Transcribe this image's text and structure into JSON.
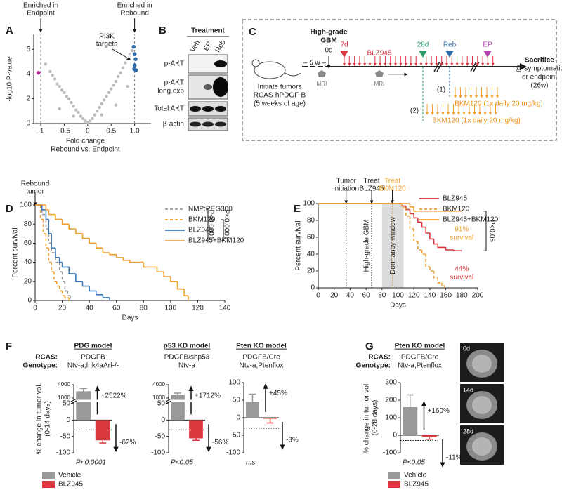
{
  "panel_labels": [
    "A",
    "B",
    "C",
    "D",
    "E",
    "F",
    "G"
  ],
  "blot": {
    "title": "Treatment",
    "lanes": [
      "Veh",
      "EP",
      "Reb"
    ],
    "rows": [
      [
        "p-AKT"
      ],
      [
        "p-AKT",
        "long exp"
      ],
      [
        "Total AKT"
      ],
      [
        "β-actin"
      ]
    ]
  },
  "schema": {
    "start": [
      "Initiate tumors",
      "RCAS-hPDGF-B",
      "(5 weeks of age)"
    ],
    "gap": "– 5 w –",
    "gbm": [
      "High-grade",
      "GBM"
    ],
    "day0": "0d",
    "markers": [
      "7d",
      "28d",
      "Reb",
      "EP"
    ],
    "drug": "BLZ945",
    "mri": [
      "MRI",
      "MRI"
    ],
    "end": [
      "Sacrifice",
      "@ symptomatic",
      "or endpoint",
      "(26w)"
    ],
    "arms": [
      {
        "label": "(1)",
        "text": "BKM120 (1x daily 20 mg/kg)"
      },
      {
        "label": "(2)",
        "text": "BKM120 (1x daily 20 mg/kg)"
      }
    ]
  },
  "chart_data": [
    {
      "type": "scatter",
      "xlabel": [
        "Fold change",
        "Rebound vs. Endpoint"
      ],
      "ylabel": "-log10 P-value",
      "xlim": [
        -1.15,
        1.35
      ],
      "xticks": [
        -1,
        -0.5,
        0,
        0.5,
        {
          "value": 1,
          "label": "1.0"
        }
      ],
      "ylim": [
        0,
        7.2
      ],
      "yticks": [
        0,
        2,
        4,
        6
      ],
      "ref_lines": [
        -1,
        1
      ],
      "annotations": [
        [
          "Enriched in",
          "Endpoint"
        ],
        [
          "Enriched in",
          "Rebound"
        ]
      ],
      "callout": [
        "PI3K",
        "targets"
      ],
      "series": [
        {
          "color": "#bdbdbd",
          "x": [
            -0.9,
            -0.8,
            -0.75,
            -0.7,
            -0.65,
            -0.6,
            -0.55,
            -0.5,
            -0.45,
            -0.4,
            -0.35,
            -0.3,
            -0.25,
            -0.2,
            -0.15,
            -0.1,
            -0.05,
            0,
            0.05,
            0.1,
            0.15,
            0.2,
            0.25,
            0.3,
            0.35,
            0.4,
            0.45,
            0.5,
            0.55,
            0.6,
            0.65,
            0.7,
            0.75,
            0.8,
            0.85,
            0.9,
            0.95,
            -0.6,
            -0.3,
            0.3,
            0.6,
            0.85
          ],
          "values": [
            4.8,
            4.2,
            3.9,
            3.6,
            3.2,
            3.0,
            2.7,
            2.5,
            2.2,
            2.0,
            1.7,
            1.4,
            1.1,
            0.9,
            0.6,
            0.4,
            0.2,
            0.05,
            0.2,
            0.4,
            0.7,
            1.0,
            1.3,
            1.6,
            1.9,
            2.2,
            2.5,
            2.8,
            3.1,
            3.4,
            3.8,
            4.1,
            4.5,
            4.9,
            5.2,
            5.6,
            5.9,
            1.2,
            0.6,
            0.7,
            1.5,
            3.0
          ]
        },
        {
          "color": "#2f6aa8",
          "x": [
            0.98,
            1.0,
            1.02,
            1.0,
            0.99,
            1.03
          ],
          "values": [
            6.2,
            5.6,
            5.2,
            4.7,
            4.4,
            4.3
          ]
        },
        {
          "color": "#c0309a",
          "x": [
            -1.05
          ],
          "values": [
            4.1
          ]
        }
      ]
    },
    {
      "type": "line",
      "xlabel": "Days",
      "ylabel": "Percent survival",
      "xlim": [
        0,
        140
      ],
      "xticks": [
        0,
        20,
        40,
        60,
        80,
        100,
        120,
        140
      ],
      "ylim": [
        0,
        100
      ],
      "yticks": [
        0,
        20,
        40,
        60,
        80,
        100
      ],
      "legend": "upper right",
      "arrow_label": [
        "Rebound",
        "tumor"
      ],
      "p_labels": [
        "P<0.0001",
        "P<0.0001"
      ],
      "series": [
        {
          "name": "NMP:PEG300",
          "color": "#999999",
          "dash": true,
          "x": [
            0,
            5,
            8,
            10,
            12,
            15,
            18,
            20,
            22,
            24,
            26
          ],
          "values": [
            100,
            90,
            75,
            60,
            50,
            40,
            30,
            20,
            10,
            5,
            0
          ]
        },
        {
          "name": "BKM120",
          "color": "#f0a030",
          "dash": true,
          "x": [
            0,
            4,
            6,
            8,
            10,
            12,
            14,
            16,
            18,
            20,
            22,
            25
          ],
          "values": [
            100,
            85,
            70,
            55,
            40,
            30,
            20,
            15,
            10,
            5,
            3,
            0
          ]
        },
        {
          "name": "BLZ945",
          "color": "#3a78b5",
          "dash": false,
          "x": [
            0,
            5,
            8,
            10,
            12,
            15,
            18,
            20,
            25,
            30,
            35,
            40,
            45,
            50,
            55
          ],
          "values": [
            100,
            95,
            85,
            70,
            55,
            45,
            40,
            35,
            28,
            20,
            15,
            10,
            6,
            3,
            0
          ]
        },
        {
          "name": "BLZ945+BKM120",
          "color": "#f0a030",
          "dash": false,
          "x": [
            0,
            5,
            8,
            10,
            15,
            20,
            25,
            30,
            35,
            40,
            45,
            50,
            55,
            60,
            65,
            70,
            80,
            90,
            95,
            100,
            105,
            110,
            113
          ],
          "values": [
            100,
            100,
            95,
            90,
            85,
            80,
            75,
            70,
            65,
            60,
            55,
            50,
            48,
            45,
            42,
            40,
            35,
            30,
            25,
            20,
            12,
            5,
            0
          ]
        }
      ]
    },
    {
      "type": "line",
      "xlabel": "Days",
      "ylabel": "Percent survival",
      "xlim": [
        0,
        200
      ],
      "xticks": [
        0,
        20,
        40,
        60,
        80,
        100,
        120,
        140,
        160,
        180,
        200
      ],
      "ylim": [
        0,
        100
      ],
      "yticks": [
        0,
        20,
        40,
        60,
        80,
        100
      ],
      "legend": "upper right",
      "vlines": [
        {
          "x": 35,
          "label": [
            "Tumor",
            "initiation"
          ],
          "color": "#222222"
        },
        {
          "x": 67,
          "label": [
            "Treat",
            "BLZ945"
          ],
          "color": "#222222"
        },
        {
          "x": 93,
          "label": [
            "Treat",
            "BKM120"
          ],
          "color": "#f0a030"
        }
      ],
      "shade": {
        "range": [
          80,
          107
        ],
        "label": "Dormancy window"
      },
      "stage_label": "High-grade GBM",
      "p_label": "P<0.05",
      "series": [
        {
          "name": "BLZ945",
          "color": "#d9363e",
          "dash": false,
          "x": [
            0,
            100,
            105,
            110,
            115,
            120,
            125,
            130,
            135,
            140,
            145,
            150,
            160,
            170,
            180
          ],
          "values": [
            100,
            100,
            97,
            93,
            88,
            83,
            78,
            72,
            65,
            58,
            52,
            48,
            45,
            44,
            44
          ],
          "end_label": [
            "44%",
            "survival"
          ]
        },
        {
          "name": "BKM120",
          "color": "#f0a030",
          "dash": true,
          "x": [
            0,
            100,
            105,
            110,
            115,
            120,
            125,
            130,
            135,
            140,
            145,
            150,
            155,
            158
          ],
          "values": [
            100,
            100,
            95,
            85,
            70,
            55,
            45,
            40,
            25,
            20,
            12,
            6,
            3,
            0
          ]
        },
        {
          "name": "BLZ945+BKM120",
          "color": "#f0a030",
          "dash": false,
          "x": [
            0,
            110,
            115,
            120,
            180
          ],
          "values": [
            100,
            100,
            96,
            91,
            91
          ],
          "end_label": [
            "91%",
            "survival"
          ]
        }
      ]
    },
    {
      "type": "bar",
      "categories": [
        "Vehicle",
        "BLZ945"
      ],
      "colors": [
        "#999999",
        "#d9363e"
      ],
      "row_labels": [
        "RCAS:",
        "Genotype:"
      ],
      "ylabel": [
        "% change in tumor vol.",
        "(0-14 days)"
      ],
      "panels": [
        {
          "title": "PDG model",
          "rcas": "PDGFB",
          "genotype": "Ntv-a;Ink4aArf-/-",
          "values": [
            2522,
            -62
          ],
          "errors": [
            600,
            8
          ],
          "value_labels": [
            "+2522%",
            "-62%"
          ],
          "p_text": "P<0.0001",
          "ylim": [
            -100,
            50
          ],
          "yticks": [
            -100,
            -50,
            0,
            50
          ],
          "broken_ylim": [
            1000,
            4000
          ],
          "broken_yticks": [
            1000,
            4000
          ],
          "threshold": -30
        },
        {
          "title": "p53 KD model",
          "rcas": "PDGFB/shp53",
          "genotype": "Ntv-a",
          "values": [
            1712,
            -56
          ],
          "errors": [
            400,
            6
          ],
          "value_labels": [
            "+1712%",
            "-56%"
          ],
          "p_text": "P<0.05",
          "ylim": [
            -100,
            50
          ],
          "yticks": [
            -100,
            -50,
            0,
            50
          ],
          "broken_ylim": [
            1000,
            4000
          ],
          "broken_yticks": [
            1000,
            4000
          ],
          "threshold": -30
        },
        {
          "title": "Pten KO model",
          "rcas": "PDGFB/Cre",
          "genotype": "Ntv-a;Ptenflox",
          "values": [
            45,
            -3
          ],
          "errors": [
            22,
            12
          ],
          "value_labels": [
            "+45%",
            "-3%"
          ],
          "p_text": "n.s.",
          "ylim": [
            -100,
            100
          ],
          "yticks": [
            -100,
            -50,
            0,
            50,
            100
          ],
          "threshold": -30
        }
      ]
    },
    {
      "type": "bar",
      "categories": [
        "Vehicle",
        "BLZ945"
      ],
      "colors": [
        "#999999",
        "#d9363e"
      ],
      "row_labels": [
        "RCAS:",
        "Genotype:"
      ],
      "ylabel": [
        "% change in tumor vol.",
        "(0-28 days)"
      ],
      "images": [
        "0d",
        "14d",
        "28d"
      ],
      "panels": [
        {
          "title": "Pten KO model",
          "rcas": "PDGFB/Cre",
          "genotype": "Ntv-a;Ptenflox",
          "values": [
            160,
            -11
          ],
          "errors": [
            70,
            12
          ],
          "value_labels": [
            "+160%",
            "-11%"
          ],
          "p_text": "P<0.05",
          "ylim": [
            -100,
            300
          ],
          "yticks": [
            -100,
            0,
            100,
            200,
            300
          ],
          "threshold": -30
        }
      ]
    }
  ]
}
